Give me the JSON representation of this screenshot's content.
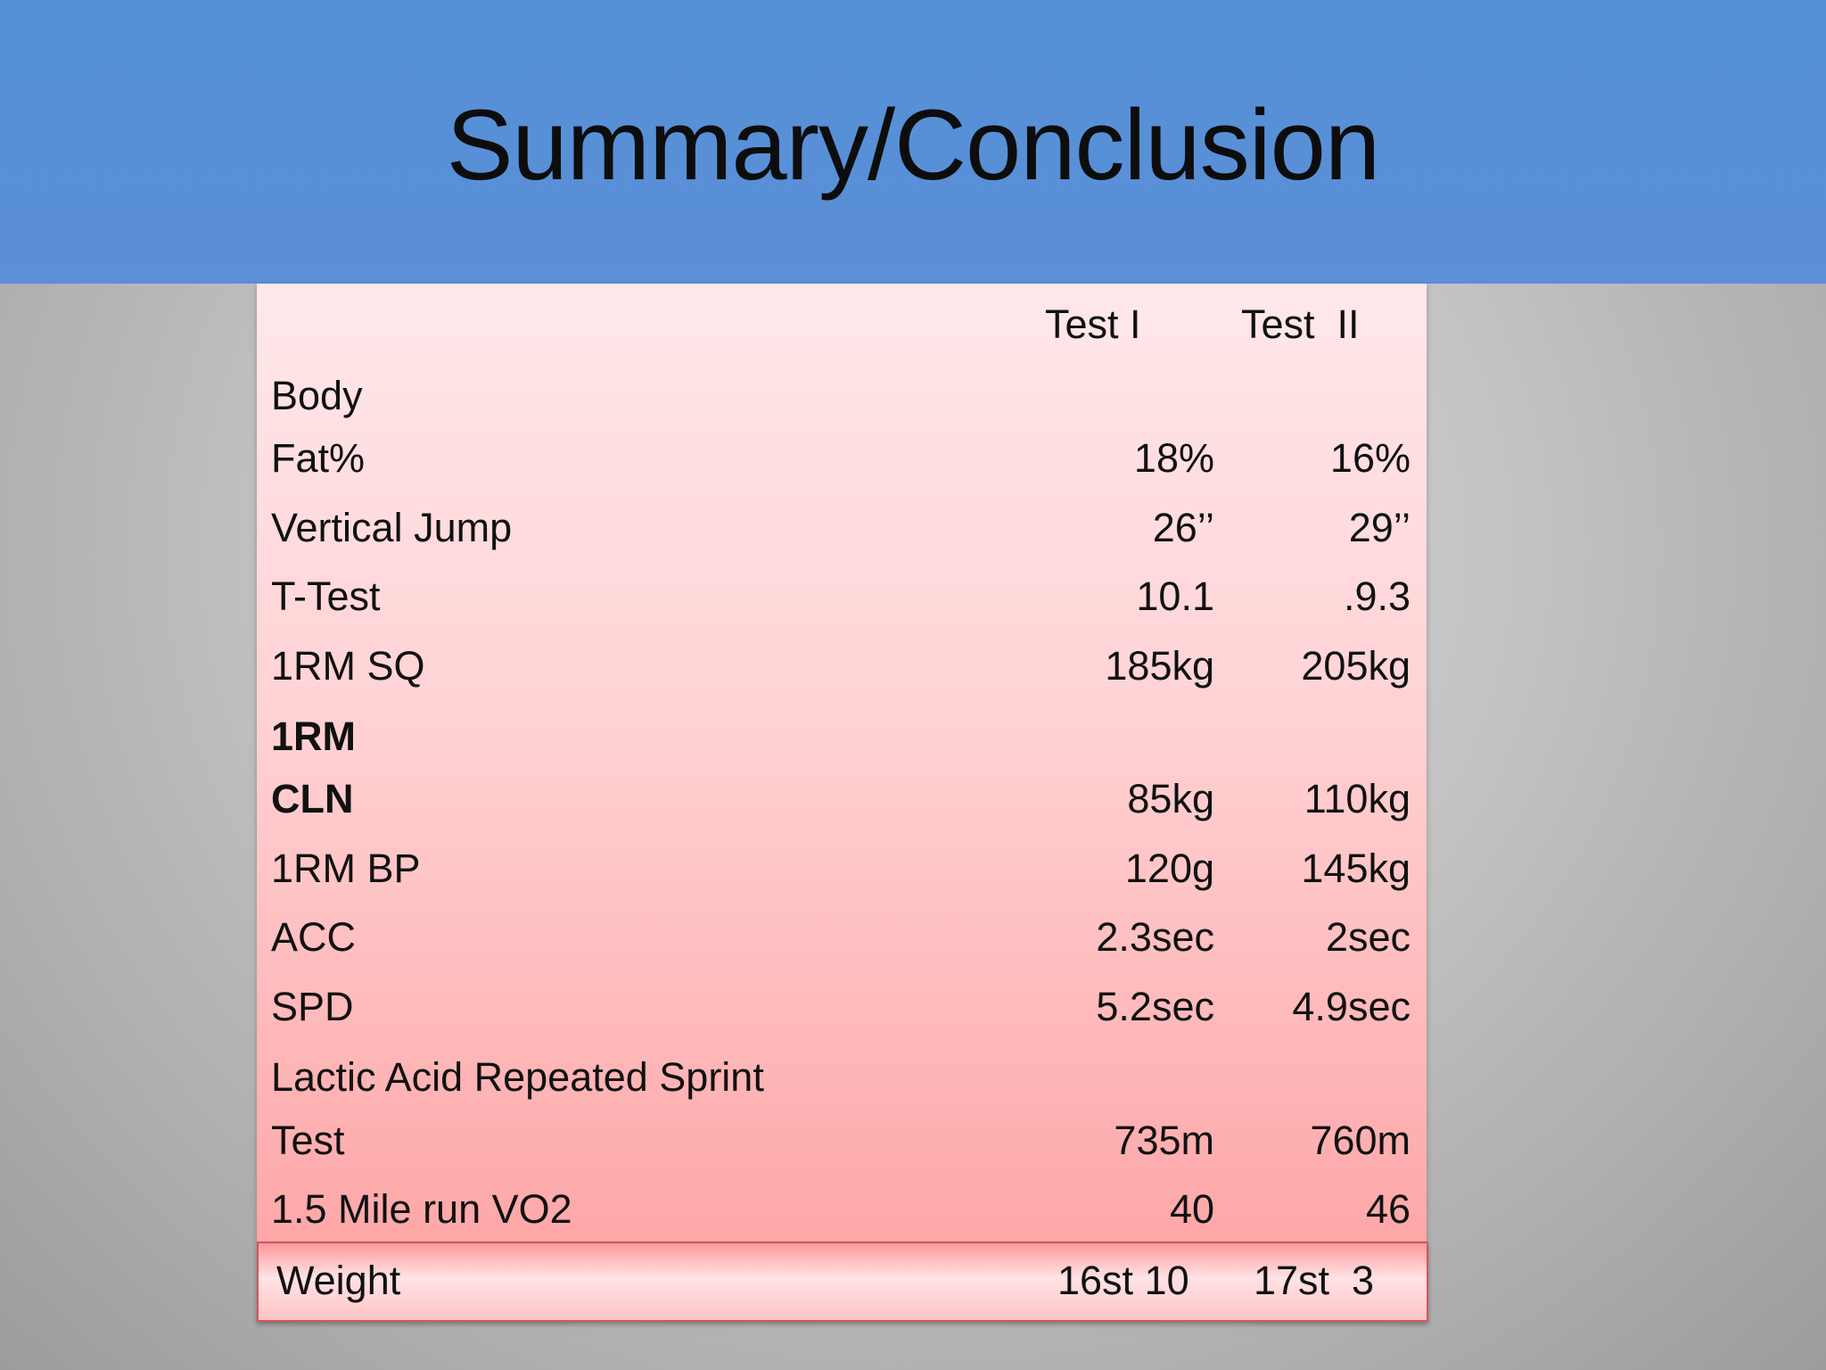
{
  "slide": {
    "title": "Summary/Conclusion"
  },
  "table": {
    "header": {
      "col1": "Test I",
      "col2": "Test  II"
    },
    "rows": [
      {
        "label": "Body",
        "test1": "",
        "test2": ""
      },
      {
        "label": "Fat%",
        "test1": "18%",
        "test2": "16%"
      },
      {
        "label": "Vertical Jump",
        "test1": "26’’",
        "test2": "29’’"
      },
      {
        "label": "T-Test",
        "test1": "10.1",
        "test2": ".9.3"
      },
      {
        "label": "1RM SQ",
        "test1": "185kg",
        "test2": "205kg"
      },
      {
        "label": "1RM",
        "test1": "",
        "test2": ""
      },
      {
        "label": "CLN",
        "test1": "85kg",
        "test2": "110kg"
      },
      {
        "label": "1RM BP",
        "test1": "120g",
        "test2": "145kg"
      },
      {
        "label": "ACC",
        "test1": "2.3sec",
        "test2": "2sec"
      },
      {
        "label": "SPD",
        "test1": "5.2sec",
        "test2": "4.9sec"
      },
      {
        "label": "Lactic Acid Repeated Sprint",
        "test1": "",
        "test2": ""
      },
      {
        "label": "Test",
        "test1": "735m",
        "test2": "760m"
      },
      {
        "label": "1.5 Mile run VO2",
        "test1": "40",
        "test2": "46"
      }
    ],
    "weight": {
      "label": "Weight",
      "test1": "16st 10",
      "test2": "17st  3"
    }
  },
  "colors": {
    "header_bg": "#5590d6",
    "table_top": "#ffe8ea",
    "table_bottom": "#fea7a8",
    "weight_border": "#d0565c"
  }
}
